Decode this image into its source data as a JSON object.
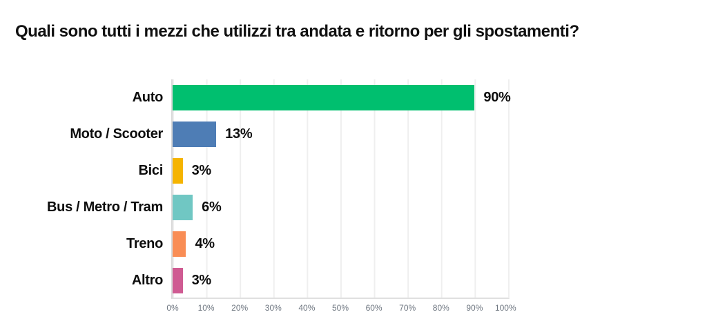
{
  "title": "Quali sono tutti i mezzi che utilizzi tra andata e ritorno per gli spostamenti?",
  "chart_data": {
    "type": "bar",
    "orientation": "horizontal",
    "title": "Quali sono tutti i mezzi che utilizzi tra andata e ritorno per gli spostamenti?",
    "categories": [
      "Auto",
      "Moto / Scooter",
      "Bici",
      "Bus / Metro / Tram",
      "Treno",
      "Altro"
    ],
    "values": [
      90,
      13,
      3,
      6,
      4,
      3
    ],
    "value_labels": [
      "90%",
      "13%",
      "3%",
      "6%",
      "4%",
      "3%"
    ],
    "bar_colors": [
      "#00bf6f",
      "#4e7db5",
      "#f5b400",
      "#70c7c3",
      "#f98d55",
      "#cf5b92"
    ],
    "xlabel": "",
    "ylabel": "",
    "xlim": [
      0,
      100
    ],
    "grid": true,
    "tick_labels": [
      "0%",
      "10%",
      "20%",
      "30%",
      "40%",
      "50%",
      "60%",
      "70%",
      "80%",
      "90%",
      "100%"
    ]
  },
  "colors": {
    "background": "#ffffff",
    "text": "#0d0d0d",
    "gridline": "#efefef",
    "axis_line": "#d8d8d8",
    "tick_text": "#6e7680"
  }
}
